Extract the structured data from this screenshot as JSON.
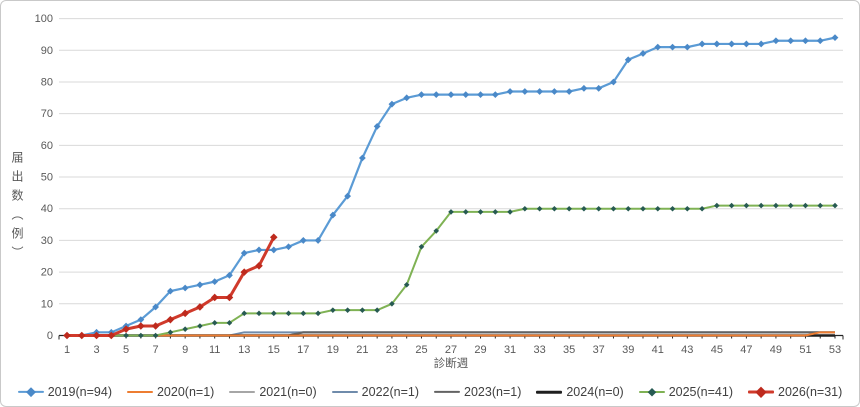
{
  "chart_data": {
    "type": "line",
    "title": "",
    "xlabel": "診断週",
    "ylabel": "届出数（例）",
    "x_range": [
      1,
      53
    ],
    "ylim": [
      0,
      100
    ],
    "y_ticks": [
      0,
      10,
      20,
      30,
      40,
      50,
      60,
      70,
      80,
      90,
      100
    ],
    "x_ticks": [
      1,
      3,
      5,
      7,
      9,
      11,
      13,
      15,
      17,
      19,
      21,
      23,
      25,
      27,
      29,
      31,
      33,
      35,
      37,
      39,
      41,
      43,
      45,
      47,
      49,
      51,
      53
    ],
    "grid": true,
    "legend_position": "bottom",
    "colors": {
      "grid": "#d9d9d9",
      "axis": "#262626",
      "tick_label": "#595959",
      "chart_border": "#c9c9c9"
    },
    "series": [
      {
        "name": "2019(n=94)",
        "color": "#5b9bd5",
        "marker": "diamond",
        "marker_color": "#4a89c8",
        "line_width": 2.2,
        "marker_size": 3.4,
        "values": [
          0,
          0,
          1,
          1,
          3,
          5,
          9,
          14,
          15,
          16,
          17,
          19,
          26,
          27,
          27,
          28,
          30,
          30,
          38,
          44,
          56,
          66,
          73,
          75,
          76,
          76,
          76,
          76,
          76,
          76,
          77,
          77,
          77,
          77,
          77,
          78,
          78,
          80,
          87,
          89,
          91,
          91,
          91,
          92,
          92,
          92,
          92,
          92,
          93,
          93,
          93,
          93,
          94
        ]
      },
      {
        "name": "2020(n=1)",
        "color": "#ed7d31",
        "marker": "none",
        "marker_color": "#ed7d31",
        "line_width": 2,
        "marker_size": 0,
        "values": [
          0,
          0,
          0,
          0,
          0,
          0,
          0,
          0,
          0,
          0,
          0,
          0,
          0,
          0,
          0,
          0,
          0,
          0,
          0,
          0,
          0,
          0,
          0,
          0,
          0,
          0,
          0,
          0,
          0,
          0,
          0,
          0,
          0,
          0,
          0,
          0,
          0,
          0,
          0,
          0,
          0,
          0,
          0,
          0,
          0,
          0,
          0,
          0,
          0,
          0,
          0,
          1,
          1
        ]
      },
      {
        "name": "2021(n=0)",
        "color": "#a6a6a6",
        "marker": "none",
        "marker_color": "#a6a6a6",
        "line_width": 2,
        "marker_size": 0,
        "values": [
          0,
          0,
          0,
          0,
          0,
          0,
          0,
          0,
          0,
          0,
          0,
          0,
          0,
          0,
          0,
          0,
          0,
          0,
          0,
          0,
          0,
          0,
          0,
          0,
          0,
          0,
          0,
          0,
          0,
          0,
          0,
          0,
          0,
          0,
          0,
          0,
          0,
          0,
          0,
          0,
          0,
          0,
          0,
          0,
          0,
          0,
          0,
          0,
          0,
          0,
          0,
          0,
          0
        ]
      },
      {
        "name": "2022(n=1)",
        "color": "#6f8bab",
        "marker": "none",
        "marker_color": "#6f8bab",
        "line_width": 2,
        "marker_size": 0,
        "values": [
          0,
          0,
          0,
          0,
          0,
          0,
          0,
          0,
          0,
          0,
          0,
          0,
          1,
          1,
          1,
          1,
          1,
          1,
          1,
          1,
          1,
          1,
          1,
          1,
          1,
          1,
          1,
          1,
          1,
          1,
          1,
          1,
          1,
          1,
          1,
          1,
          1,
          1,
          1,
          1,
          1,
          1,
          1,
          1,
          1,
          1,
          1,
          1,
          1,
          1,
          1,
          1,
          1
        ]
      },
      {
        "name": "2023(n=1)",
        "color": "#636363",
        "marker": "none",
        "marker_color": "#636363",
        "line_width": 2.2,
        "marker_size": 0,
        "values": [
          0,
          0,
          0,
          0,
          0,
          0,
          0,
          0,
          0,
          0,
          0,
          0,
          0,
          0,
          0,
          0,
          1,
          1,
          1,
          1,
          1,
          1,
          1,
          1,
          1,
          1,
          1,
          1,
          1,
          1,
          1,
          1,
          1,
          1,
          1,
          1,
          1,
          1,
          1,
          1,
          1,
          1,
          1,
          1,
          1,
          1,
          1,
          1,
          1,
          1,
          1,
          1,
          1
        ]
      },
      {
        "name": "2024(n=0)",
        "color": "#1f1f1f",
        "marker": "none",
        "marker_color": "#1f1f1f",
        "line_width": 2.6,
        "marker_size": 0,
        "values": [
          0,
          0,
          0,
          0,
          0,
          0,
          0,
          0,
          0,
          0,
          0,
          0,
          0,
          0,
          0,
          0,
          0,
          0,
          0,
          0,
          0,
          0,
          0,
          0,
          0,
          0,
          0,
          0,
          0,
          0,
          0,
          0,
          0,
          0,
          0,
          0,
          0,
          0,
          0,
          0,
          0,
          0,
          0,
          0,
          0,
          0,
          0,
          0,
          0,
          0,
          0,
          0,
          0
        ]
      },
      {
        "name": "2025(n=41)",
        "color": "#7fb254",
        "marker": "diamond",
        "marker_color": "#275a52",
        "line_width": 2,
        "marker_size": 2.8,
        "values": [
          0,
          0,
          0,
          0,
          0,
          0,
          0,
          1,
          2,
          3,
          4,
          4,
          7,
          7,
          7,
          7,
          7,
          7,
          8,
          8,
          8,
          8,
          10,
          16,
          28,
          33,
          39,
          39,
          39,
          39,
          39,
          40,
          40,
          40,
          40,
          40,
          40,
          40,
          40,
          40,
          40,
          40,
          40,
          40,
          41,
          41,
          41,
          41,
          41,
          41,
          41,
          41,
          41
        ]
      },
      {
        "name": "2026(n=31)",
        "color": "#d03a2b",
        "marker": "diamond",
        "marker_color": "#be2a1d",
        "line_width": 3,
        "marker_size": 3.8,
        "values": [
          0,
          0,
          0,
          0,
          2,
          3,
          3,
          5,
          7,
          9,
          12,
          12,
          20,
          22,
          31
        ]
      }
    ]
  }
}
